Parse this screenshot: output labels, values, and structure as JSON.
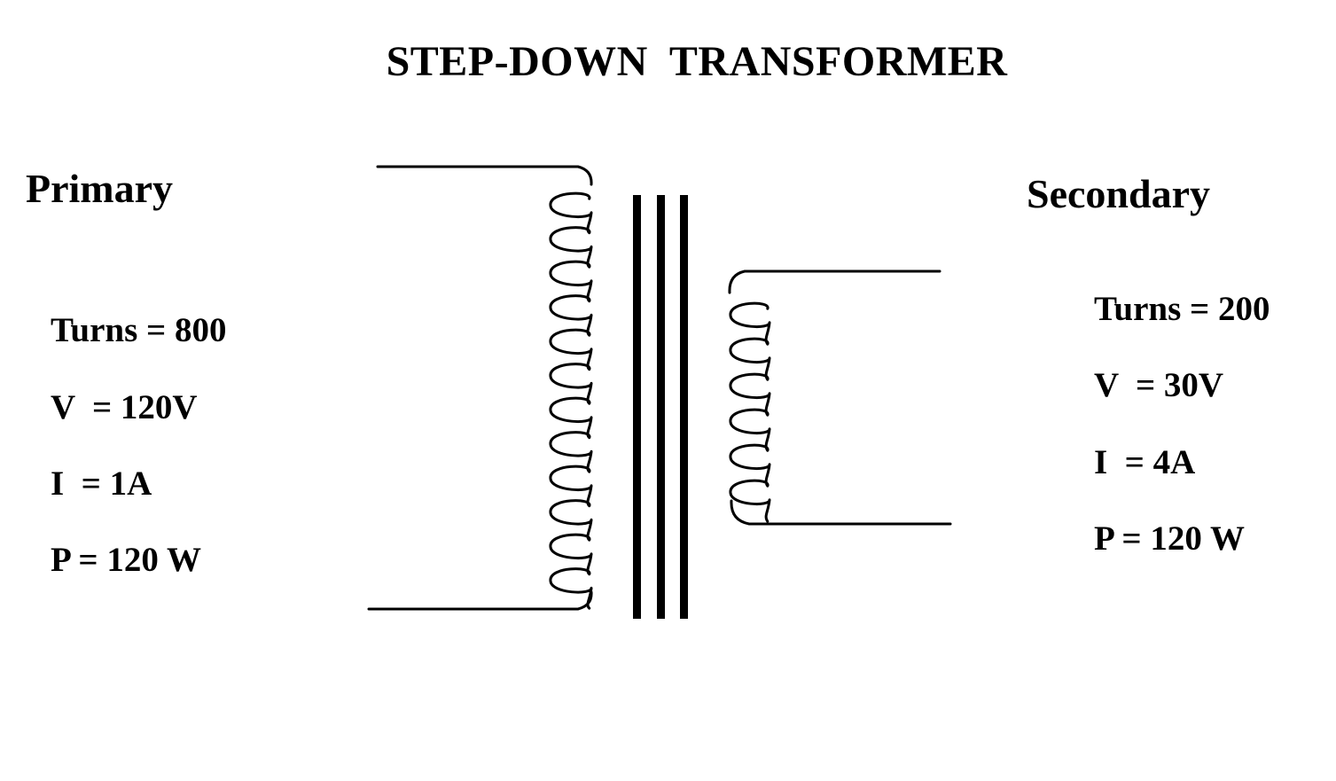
{
  "title": "STEP-DOWN  TRANSFORMER",
  "primary": {
    "label": "Primary",
    "turns": "Turns = 800",
    "voltage": "V  = 120V",
    "current": "I  = 1A",
    "power": "P = 120 W"
  },
  "secondary": {
    "label": "Secondary",
    "turns": "Turns = 200",
    "voltage": "V  = 30V",
    "current": "I  = 4A",
    "power": "P = 120 W"
  },
  "colors": {
    "line": "#000000",
    "background": "#ffffff"
  }
}
